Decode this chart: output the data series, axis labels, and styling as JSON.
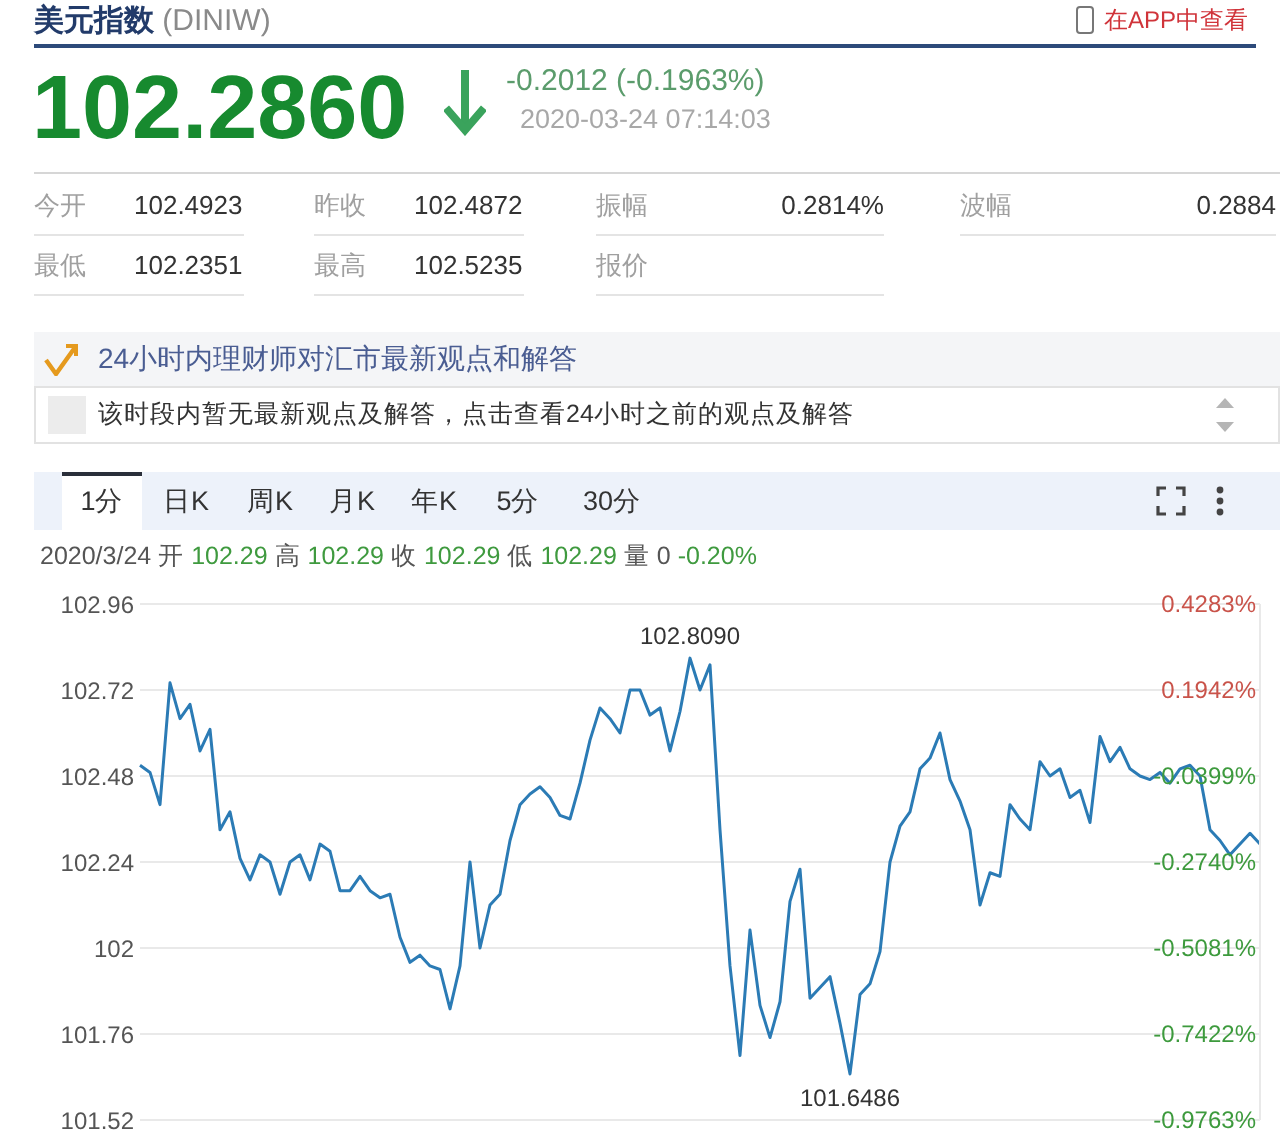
{
  "chart_data": {
    "type": "line",
    "title": "美元指数 (DINIW)",
    "annotations": [
      "102.2860",
      "-0.2012 (-0.1963%)",
      "2020-03-24 07:14:03",
      "今开",
      "102.4923",
      "昨收",
      "102.4872",
      "振幅",
      "0.2814%",
      "波幅",
      "0.2884",
      "最低",
      "102.2351",
      "最高",
      "102.5235",
      "报价",
      "24小时内理财师对汇市最新观点和解答",
      "该时段内暂无最新观点及解答，点击查看24小时之前的观点及解答",
      "1分",
      "日K",
      "周K",
      "月K",
      "年K",
      "5分",
      "30分",
      "2020/3/24 开 102.29 高 102.29 收 102.29 低 102.29 量 0 -0.20%",
      "在APP中查看",
      {
        "text": "102.8090",
        "y": 102.809
      },
      {
        "text": "101.6486",
        "y": 101.6486
      }
    ],
    "categories": [
      null,
      null,
      null,
      null,
      null,
      null,
      null,
      null,
      null,
      null,
      null,
      null,
      null,
      null,
      null,
      null,
      null,
      null,
      null,
      null,
      null,
      null,
      null,
      null,
      null,
      null,
      null,
      null,
      null,
      null,
      null,
      null,
      null,
      null,
      null,
      null,
      null,
      null,
      null,
      null,
      null,
      null,
      null,
      null,
      null,
      null,
      null,
      null,
      null,
      null,
      null,
      null,
      null,
      null,
      null,
      null,
      null,
      null,
      null,
      null,
      null,
      null,
      null,
      null,
      null,
      null,
      null,
      null,
      null,
      null,
      null,
      null,
      null,
      null,
      null,
      null,
      null,
      null,
      null,
      null,
      null,
      null,
      null,
      null,
      null,
      null,
      null,
      null,
      null,
      null,
      null,
      null,
      null,
      null,
      null,
      null,
      null,
      null,
      null,
      null,
      null,
      null,
      null,
      null,
      null,
      null,
      null,
      null,
      null,
      null,
      null,
      null,
      null
    ],
    "values": [
      102.51,
      102.49,
      102.4,
      102.74,
      102.64,
      102.68,
      102.55,
      102.61,
      102.33,
      102.38,
      102.25,
      102.19,
      102.26,
      102.24,
      102.15,
      102.24,
      102.26,
      102.19,
      102.29,
      102.27,
      102.16,
      102.16,
      102.2,
      102.16,
      102.14,
      102.15,
      102.03,
      101.96,
      101.98,
      101.95,
      101.94,
      101.83,
      101.95,
      102.24,
      102.0,
      102.12,
      102.15,
      102.3,
      102.4,
      102.43,
      102.45,
      102.42,
      102.37,
      102.36,
      102.46,
      102.58,
      102.67,
      102.64,
      102.6,
      102.72,
      102.72,
      102.65,
      102.67,
      102.55,
      102.66,
      102.809,
      102.72,
      102.79,
      102.33,
      101.95,
      101.7,
      102.05,
      101.84,
      101.75,
      101.85,
      102.13,
      102.22,
      101.86,
      101.89,
      101.92,
      101.79,
      101.6486,
      101.87,
      101.9,
      101.99,
      102.24,
      102.34,
      102.38,
      102.5,
      102.53,
      102.6,
      102.47,
      102.41,
      102.33,
      102.12,
      102.21,
      102.2,
      102.4,
      102.36,
      102.33,
      102.52,
      102.48,
      102.5,
      102.42,
      102.44,
      102.35,
      102.59,
      102.52,
      102.56,
      102.5,
      102.48,
      102.47,
      102.49,
      102.46,
      102.5,
      102.51,
      102.48,
      102.33,
      102.3,
      102.26,
      102.29,
      102.32,
      102.29
    ],
    "color": "#2b7bb5",
    "ylim": [
      101.52,
      102.96
    ],
    "yticks": [
      101.52,
      101.76,
      102,
      102.24,
      102.48,
      102.72,
      102.96
    ],
    "y2lim": [
      -0.9763,
      0.4283
    ],
    "y2ticks": [
      {
        "value": -0.9763,
        "label": "-0.9763%"
      },
      {
        "value": -0.7422,
        "label": "-0.7422%"
      },
      {
        "value": -0.5081,
        "label": "-0.5081%"
      },
      {
        "value": -0.274,
        "label": "-0.2740%"
      },
      {
        "value": -0.0399,
        "label": "-0.0399%"
      },
      {
        "value": 0.1942,
        "label": "0.1942%"
      },
      {
        "value": 0.4283,
        "label": "0.4283%"
      }
    ],
    "grid": "y",
    "marker": "none",
    "line_style": "solid"
  }
}
